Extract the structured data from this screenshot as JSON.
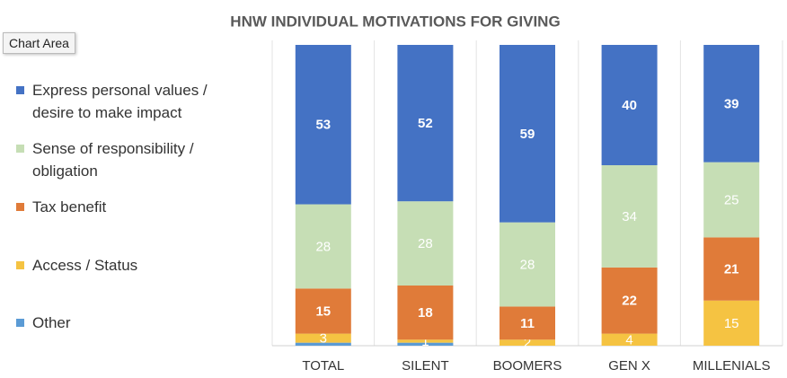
{
  "chart_data": {
    "type": "stacked_bar_100",
    "title": "HNW INDIVIDUAL MOTIVATIONS FOR GIVING",
    "tooltip": "Chart Area",
    "categories": [
      "TOTAL",
      "SILENT",
      "BOOMERS",
      "GEN X",
      "MILLENIALS"
    ],
    "ylim": [
      0,
      100
    ],
    "series": [
      {
        "name": "Other",
        "color": "#5b9bd5",
        "values": [
          1,
          1,
          0,
          0,
          0
        ],
        "show_labels": false
      },
      {
        "name": "Access / Status",
        "color": "#f5c342",
        "values": [
          3,
          1,
          2,
          4,
          15
        ]
      },
      {
        "name": "Tax benefit",
        "color": "#e07b39",
        "values": [
          15,
          18,
          11,
          22,
          21
        ]
      },
      {
        "name": "Sense of responsibility / obligation",
        "color": "#c6deb5",
        "values": [
          28,
          28,
          28,
          34,
          25
        ]
      },
      {
        "name": "Express personal values / desire to make impact",
        "color": "#4472c4",
        "values": [
          53,
          52,
          59,
          40,
          39
        ]
      }
    ],
    "legend": "left"
  }
}
